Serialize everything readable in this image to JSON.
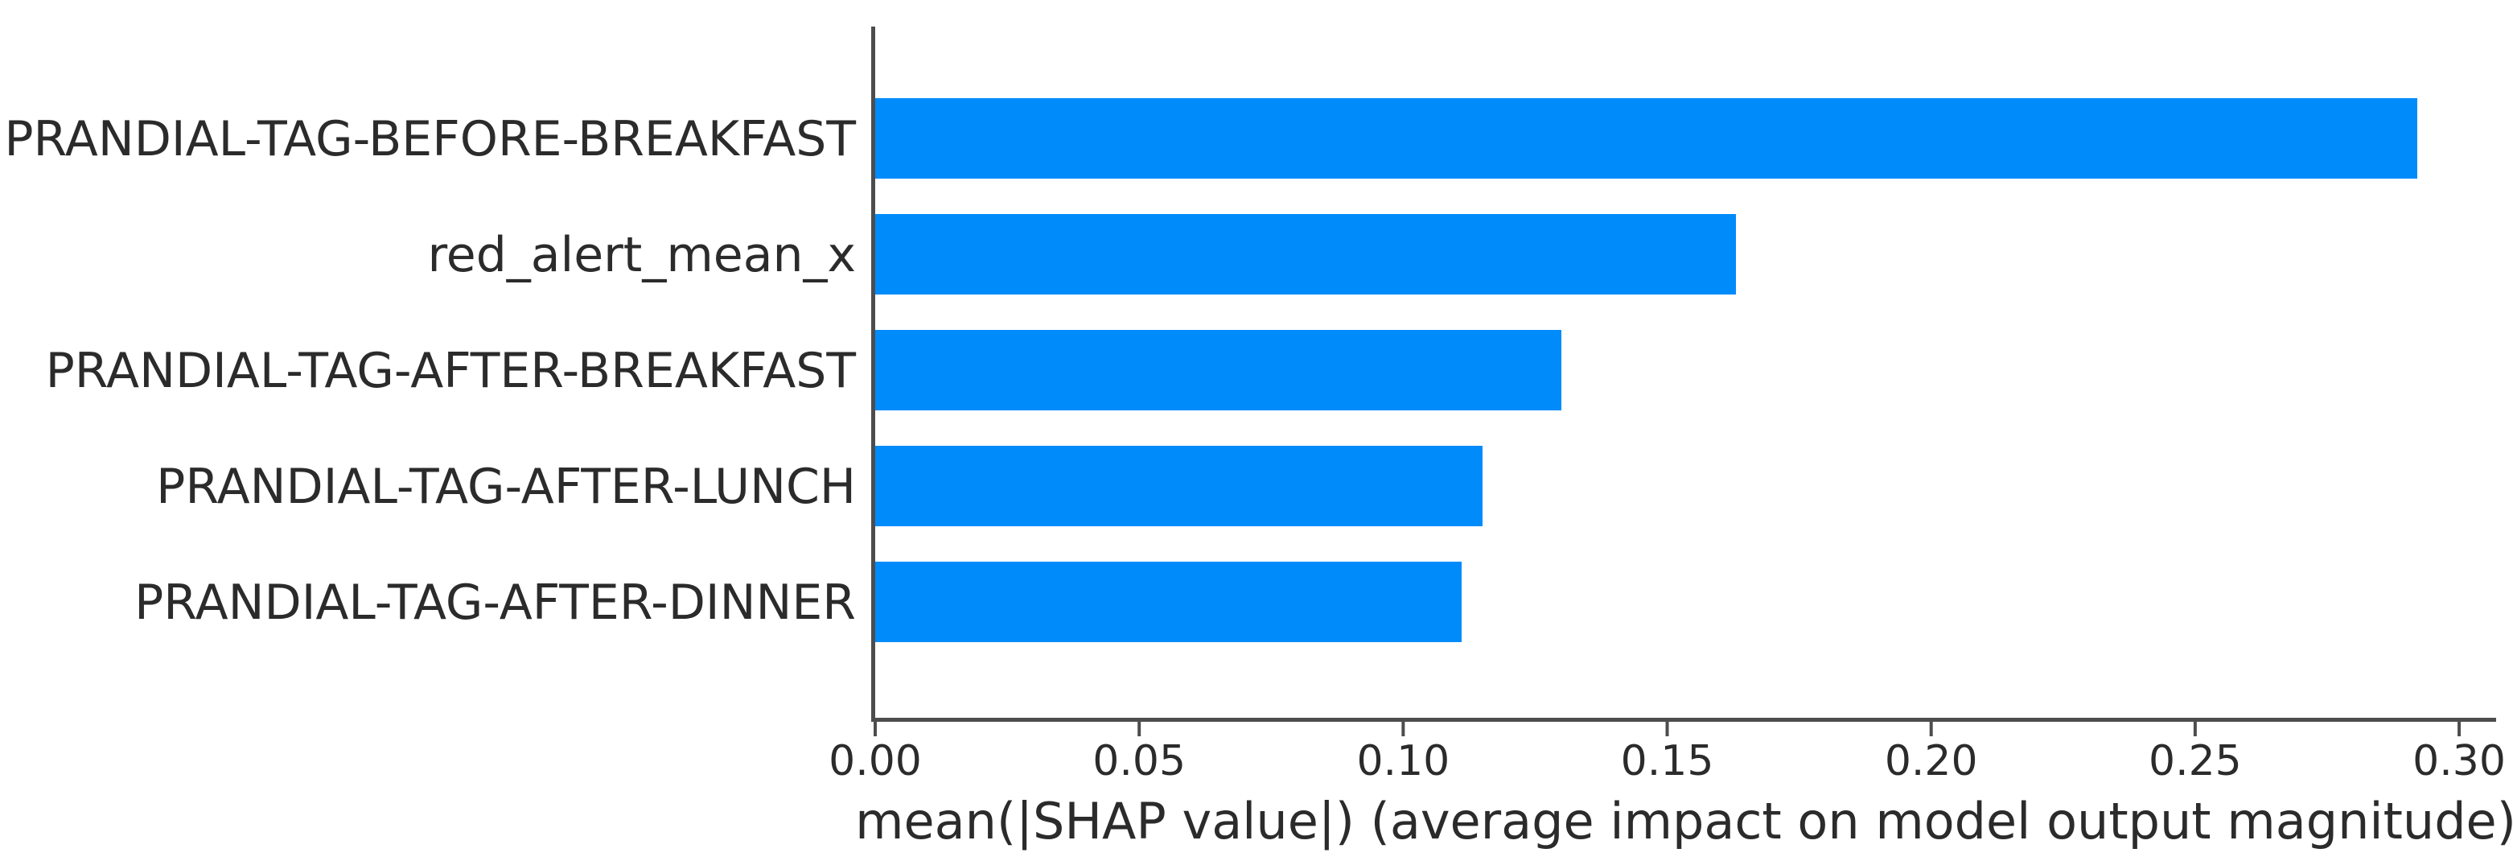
{
  "chart_data": {
    "type": "bar",
    "orientation": "horizontal",
    "title": "",
    "xlabel": "mean(|SHAP value|) (average impact on model output magnitude)",
    "ylabel": "",
    "categories": [
      "PRANDIAL-TAG-BEFORE-BREAKFAST",
      "red_alert_mean_x",
      "PRANDIAL-TAG-AFTER-BREAKFAST",
      "PRANDIAL-TAG-AFTER-LUNCH",
      "PRANDIAL-TAG-AFTER-DINNER"
    ],
    "values": [
      0.292,
      0.163,
      0.13,
      0.115,
      0.111
    ],
    "xlim": [
      0,
      0.307
    ],
    "xticks": [
      0.0,
      0.05,
      0.1,
      0.15,
      0.2,
      0.25,
      0.3
    ],
    "xtick_labels": [
      "0.00",
      "0.05",
      "0.10",
      "0.15",
      "0.20",
      "0.25",
      "0.30"
    ],
    "grid": false,
    "legend_position": "none",
    "bar_color": "#008bfb",
    "axis_color": "#4d4d4d",
    "text_color": "#2b2b2b"
  }
}
